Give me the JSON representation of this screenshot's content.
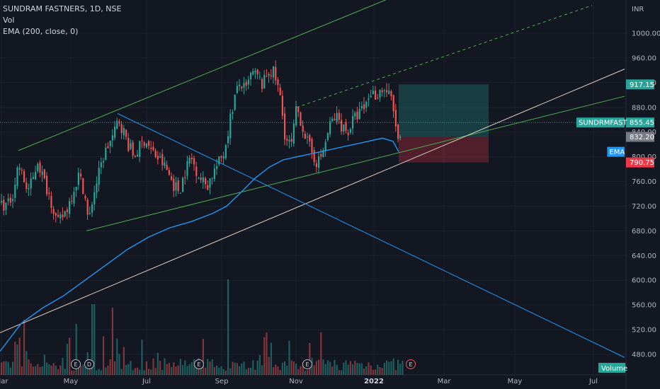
{
  "legend": {
    "title": "SUNDRAM FASTNERS, 1D, NSE",
    "vol": "Vol",
    "ema": "EMA (200, close, 0)"
  },
  "currency": "INR",
  "chart_data": {
    "type": "candlestick",
    "x_ticks": [
      "Mar",
      "May",
      "Jul",
      "Sep",
      "Nov",
      "2022",
      "Mar",
      "May",
      "Jul"
    ],
    "y_ticks": [
      480,
      520,
      560,
      600,
      640,
      680,
      720,
      760,
      800,
      840,
      880,
      920,
      960,
      1000
    ],
    "ylim": [
      460,
      1030
    ],
    "price_tags": [
      {
        "label": "",
        "value": "917.15",
        "price": 917.15,
        "color": "#26a69a"
      },
      {
        "label": "SUNDRMFAST",
        "value": "855.45",
        "price": 855.45,
        "color": "#26a69a"
      },
      {
        "label": "",
        "value": "832.20",
        "price": 832.2,
        "color": "#787b86"
      },
      {
        "label": "EMA",
        "value": "",
        "price": 808,
        "color": "#2196f3"
      },
      {
        "label": "",
        "value": "790.75",
        "price": 790.75,
        "color": "#f23645"
      }
    ],
    "volume_label": "Volume",
    "events": [
      {
        "letter": "E",
        "x": 107
      },
      {
        "letter": "D",
        "x": 126
      },
      {
        "letter": "E",
        "x": 281
      },
      {
        "letter": "E",
        "x": 434
      },
      {
        "letter": "E",
        "x": 580
      }
    ],
    "close_path": [
      [
        0,
        725
      ],
      [
        10,
        720
      ],
      [
        18,
        745
      ],
      [
        25,
        790
      ],
      [
        30,
        770
      ],
      [
        38,
        745
      ],
      [
        45,
        760
      ],
      [
        52,
        795
      ],
      [
        60,
        765
      ],
      [
        68,
        740
      ],
      [
        75,
        715
      ],
      [
        80,
        690
      ],
      [
        88,
        705
      ],
      [
        95,
        720
      ],
      [
        102,
        745
      ],
      [
        110,
        770
      ],
      [
        118,
        745
      ],
      [
        124,
        690
      ],
      [
        130,
        735
      ],
      [
        138,
        770
      ],
      [
        145,
        800
      ],
      [
        152,
        820
      ],
      [
        160,
        835
      ],
      [
        166,
        862
      ],
      [
        172,
        845
      ],
      [
        180,
        820
      ],
      [
        188,
        800
      ],
      [
        196,
        815
      ],
      [
        204,
        830
      ],
      [
        212,
        810
      ],
      [
        220,
        800
      ],
      [
        228,
        790
      ],
      [
        236,
        775
      ],
      [
        244,
        755
      ],
      [
        252,
        745
      ],
      [
        260,
        775
      ],
      [
        268,
        800
      ],
      [
        276,
        780
      ],
      [
        284,
        760
      ],
      [
        292,
        755
      ],
      [
        300,
        775
      ],
      [
        308,
        790
      ],
      [
        316,
        810
      ],
      [
        322,
        850
      ],
      [
        330,
        895
      ],
      [
        338,
        920
      ],
      [
        346,
        905
      ],
      [
        354,
        935
      ],
      [
        362,
        930
      ],
      [
        370,
        915
      ],
      [
        378,
        940
      ],
      [
        386,
        935
      ],
      [
        394,
        900
      ],
      [
        402,
        830
      ],
      [
        410,
        815
      ],
      [
        418,
        880
      ],
      [
        426,
        850
      ],
      [
        434,
        820
      ],
      [
        442,
        800
      ],
      [
        448,
        790
      ],
      [
        454,
        805
      ],
      [
        460,
        830
      ],
      [
        466,
        855
      ],
      [
        474,
        865
      ],
      [
        482,
        850
      ],
      [
        490,
        840
      ],
      [
        498,
        860
      ],
      [
        506,
        870
      ],
      [
        514,
        880
      ],
      [
        522,
        905
      ],
      [
        530,
        900
      ],
      [
        538,
        910
      ],
      [
        546,
        905
      ],
      [
        552,
        890
      ],
      [
        558,
        850
      ],
      [
        563,
        812
      ],
      [
        567,
        855
      ]
    ],
    "ema_path": [
      [
        0,
        485
      ],
      [
        30,
        530
      ],
      [
        60,
        555
      ],
      [
        90,
        575
      ],
      [
        120,
        600
      ],
      [
        150,
        625
      ],
      [
        180,
        650
      ],
      [
        210,
        670
      ],
      [
        240,
        685
      ],
      [
        270,
        695
      ],
      [
        300,
        708
      ],
      [
        320,
        720
      ],
      [
        340,
        742
      ],
      [
        360,
        765
      ],
      [
        380,
        783
      ],
      [
        400,
        795
      ],
      [
        420,
        800
      ],
      [
        440,
        805
      ],
      [
        460,
        810
      ],
      [
        480,
        815
      ],
      [
        500,
        820
      ],
      [
        520,
        825
      ],
      [
        540,
        830
      ],
      [
        555,
        825
      ],
      [
        563,
        808
      ]
    ]
  }
}
